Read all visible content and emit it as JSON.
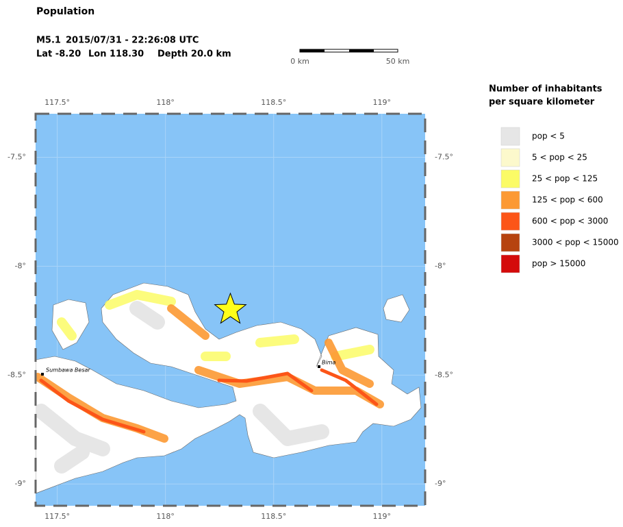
{
  "header": {
    "title": "Population",
    "event": {
      "magnitude": "M5.1",
      "datetime": "2015/07/31 - 22:26:08 UTC",
      "lat": {
        "value": -8.2,
        "label": "Lat -8.20"
      },
      "lon": {
        "value": 118.3,
        "label": "Lon 118.30"
      },
      "depth": "Depth  20.0 km"
    }
  },
  "scale_bar": {
    "labels": [
      "0 km",
      "50 km"
    ]
  },
  "map": {
    "xlim": [
      117.4,
      119.2
    ],
    "ylim": [
      -9.1,
      -7.3
    ],
    "xticks": [
      {
        "value": 117.5,
        "label": "117.5°"
      },
      {
        "value": 118,
        "label": "118°"
      },
      {
        "value": 118.5,
        "label": "118.5°"
      },
      {
        "value": 119,
        "label": "119°"
      }
    ],
    "yticks": [
      {
        "value": -7.5,
        "label": "-7.5°"
      },
      {
        "value": -8,
        "label": "-8°"
      },
      {
        "value": -8.5,
        "label": "-8.5°"
      },
      {
        "value": -9,
        "label": "-9°"
      }
    ],
    "places": [
      "Sumbawa Besar",
      "Bima"
    ]
  },
  "legend": {
    "title": [
      "Number of inhabitants",
      "per square kilometer"
    ],
    "items": [
      {
        "label": "pop < 5",
        "color": "#e6e6e6"
      },
      {
        "label": "5 < pop < 25",
        "color": "#fcf9cc"
      },
      {
        "label": "25 < pop < 125",
        "color": "#fbfb66"
      },
      {
        "label": "125 < pop < 600",
        "color": "#fc9933"
      },
      {
        "label": "600 < pop < 3000",
        "color": "#fc5518"
      },
      {
        "label": "3000 < pop < 15000",
        "color": "#b6430f"
      },
      {
        "label": "pop > 15000",
        "color": "#d40b0b"
      }
    ]
  }
}
